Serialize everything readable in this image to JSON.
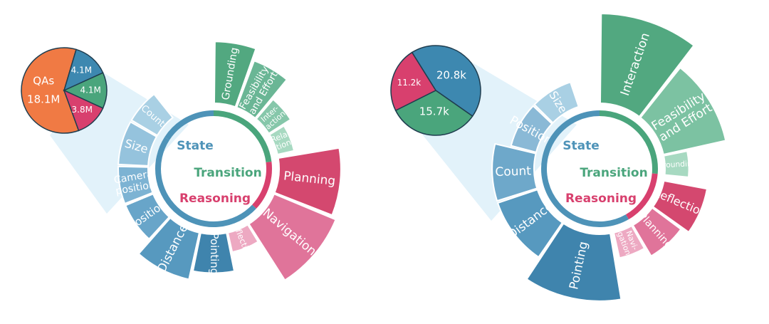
{
  "chart_data": [
    {
      "type": "sunburst",
      "pie": {
        "title": "QAs",
        "slices": [
          {
            "label": "18.1M",
            "value": 18.1,
            "color": "#f07a44"
          },
          {
            "label": "4.1M",
            "value": 4.1,
            "color": "#3d88b0"
          },
          {
            "label": "4.1M",
            "value": 4.1,
            "color": "#4aa57c"
          },
          {
            "label": "3.8M",
            "value": 3.8,
            "color": "#d8406e"
          }
        ]
      },
      "categories": [
        {
          "name": "State",
          "color": "#4e93b8"
        },
        {
          "name": "Transition",
          "color": "#4aa57c"
        },
        {
          "name": "Reasoning",
          "color": "#d8406e"
        }
      ],
      "segments": [
        {
          "label": "Grounding",
          "category": "Transition",
          "radius": 1.0,
          "color": "#52a880"
        },
        {
          "label": "Feasibility and Effort",
          "category": "Transition",
          "radius": 0.88,
          "color": "#6ab695"
        },
        {
          "label": "Inter-action",
          "category": "Transition",
          "radius": 0.64,
          "color": "#86c7aa"
        },
        {
          "label": "Rela-tion",
          "category": "Transition",
          "radius": 0.55,
          "color": "#a7d9c1"
        },
        {
          "label": "Planning",
          "category": "Reasoning",
          "radius": 1.0,
          "color": "#d4486f"
        },
        {
          "label": "Navigation",
          "category": "Reasoning",
          "radius": 1.05,
          "color": "#e0749a"
        },
        {
          "label": "Reflection",
          "category": "Reasoning",
          "radius": 0.58,
          "color": "#eda9c2"
        },
        {
          "label": "Pointing",
          "category": "State",
          "radius": 0.77,
          "color": "#3f84ad"
        },
        {
          "label": "Distance",
          "category": "State",
          "radius": 0.86,
          "color": "#5799bf"
        },
        {
          "label": "Position",
          "category": "State",
          "radius": 0.68,
          "color": "#68a5c9"
        },
        {
          "label": "Camera position",
          "category": "State",
          "radius": 0.68,
          "color": "#7db3d3"
        },
        {
          "label": "Size",
          "category": "State",
          "radius": 0.68,
          "color": "#95c3dd"
        },
        {
          "label": "Count",
          "category": "State",
          "radius": 0.68,
          "color": "#a9d0e4"
        }
      ]
    },
    {
      "type": "sunburst",
      "pie": {
        "title": "",
        "slices": [
          {
            "label": "20.8k",
            "value": 20.8,
            "color": "#3d88b0"
          },
          {
            "label": "15.7k",
            "value": 15.7,
            "color": "#4aa57c"
          },
          {
            "label": "11.2k",
            "value": 11.2,
            "color": "#d8406e"
          }
        ]
      },
      "categories": [
        {
          "name": "State",
          "color": "#4e93b8"
        },
        {
          "name": "Transition",
          "color": "#4aa57c"
        },
        {
          "name": "Reasoning",
          "color": "#d8406e"
        }
      ],
      "segments": [
        {
          "label": "Interaction",
          "category": "Transition",
          "radius": 1.28,
          "color": "#52a880"
        },
        {
          "label": "Feasibility and Effort",
          "category": "Transition",
          "radius": 1.02,
          "color": "#7cc2a2"
        },
        {
          "label": "Grounding",
          "category": "Transition",
          "radius": 0.62,
          "color": "#a7d9c1"
        },
        {
          "label": "Reflection",
          "category": "Reasoning",
          "radius": 0.82,
          "color": "#d4486f"
        },
        {
          "label": "Planning",
          "category": "Reasoning",
          "radius": 0.74,
          "color": "#e0749a"
        },
        {
          "label": "Navi-gation",
          "category": "Reasoning",
          "radius": 0.64,
          "color": "#eda9c2"
        },
        {
          "label": "Pointing",
          "category": "State",
          "radius": 1.05,
          "color": "#3f84ad"
        },
        {
          "label": "Distance",
          "category": "State",
          "radius": 0.8,
          "color": "#5799bf"
        },
        {
          "label": "Count",
          "category": "State",
          "radius": 0.8,
          "color": "#6ea8ca"
        },
        {
          "label": "Position",
          "category": "State",
          "radius": 0.64,
          "color": "#8ab9d6"
        },
        {
          "label": "Size",
          "category": "State",
          "radius": 0.64,
          "color": "#a9d0e4"
        }
      ]
    }
  ]
}
